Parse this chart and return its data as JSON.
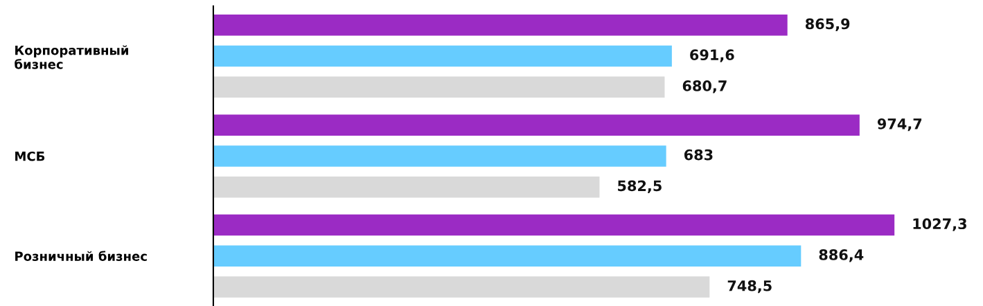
{
  "chart_data": {
    "type": "bar",
    "orientation": "horizontal",
    "categories": [
      "Корпоративный\nбизнес",
      "МСБ",
      "Розничный бизнес"
    ],
    "series": [
      {
        "color": "#9b2bc4",
        "values": [
          865.9,
          974.7,
          1027.3
        ],
        "value_labels": [
          "865,9",
          "974,7",
          "1027,3"
        ]
      },
      {
        "color": "#66ccff",
        "values": [
          691.6,
          683,
          886.4
        ],
        "value_labels": [
          "691,6",
          "683",
          "886,4"
        ]
      },
      {
        "color": "#d9d9d9",
        "values": [
          680.7,
          582.5,
          748.5
        ],
        "value_labels": [
          "680,7",
          "582,5",
          "748,5"
        ]
      }
    ],
    "grid": false,
    "legend": false,
    "tick_labels": "y"
  }
}
